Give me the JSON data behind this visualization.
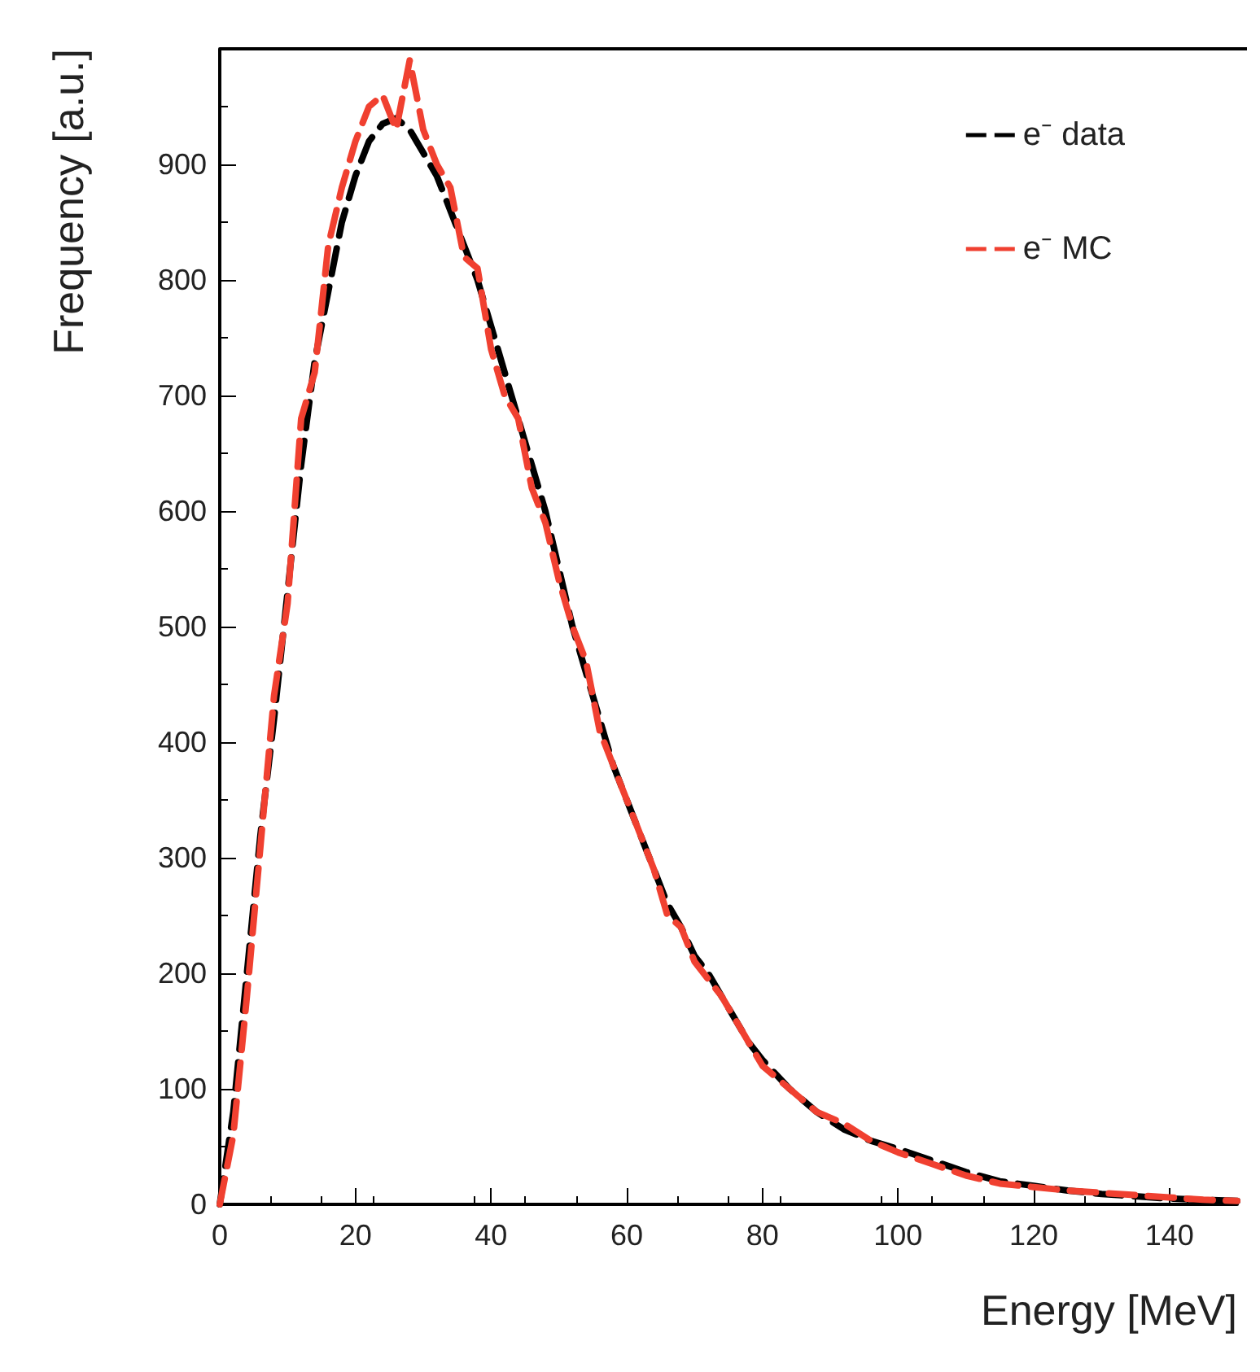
{
  "chart_data": {
    "type": "line",
    "xlabel": "Energy [MeV]",
    "ylabel": "Frequency [a.u.]",
    "x": [
      0,
      2,
      4,
      6,
      8,
      10,
      12,
      14,
      16,
      18,
      20,
      22,
      24,
      26,
      28,
      30,
      32,
      34,
      36,
      38,
      40,
      42,
      44,
      46,
      48,
      50,
      52,
      54,
      56,
      58,
      60,
      62,
      64,
      66,
      68,
      70,
      72,
      74,
      76,
      78,
      80,
      84,
      88,
      92,
      96,
      100,
      105,
      110,
      115,
      120,
      125,
      130,
      135,
      140,
      145,
      150
    ],
    "series": [
      {
        "name": "e⁻ data",
        "color": "#000000",
        "values": [
          0,
          80,
          200,
          320,
          420,
          530,
          640,
          730,
          790,
          850,
          890,
          920,
          935,
          940,
          930,
          910,
          890,
          860,
          830,
          800,
          760,
          720,
          680,
          640,
          600,
          550,
          500,
          460,
          420,
          380,
          350,
          320,
          290,
          260,
          240,
          215,
          200,
          180,
          160,
          140,
          125,
          100,
          80,
          65,
          55,
          48,
          38,
          28,
          20,
          16,
          12,
          9,
          7,
          5,
          4,
          3
        ]
      },
      {
        "name": "e⁻ MC",
        "color": "#f04030",
        "values": [
          0,
          60,
          180,
          310,
          440,
          520,
          680,
          720,
          830,
          880,
          920,
          950,
          960,
          930,
          990,
          930,
          900,
          880,
          820,
          810,
          740,
          700,
          680,
          620,
          590,
          540,
          500,
          470,
          410,
          380,
          350,
          320,
          290,
          250,
          240,
          210,
          195,
          180,
          160,
          140,
          120,
          100,
          80,
          70,
          55,
          45,
          35,
          25,
          18,
          15,
          12,
          10,
          8,
          6,
          4,
          3
        ]
      }
    ],
    "xlim": [
      0,
      150
    ],
    "xticks": [
      0,
      20,
      40,
      60,
      80,
      100,
      120,
      140
    ],
    "ylim": [
      0,
      1000
    ],
    "yticks": [
      0,
      100,
      200,
      300,
      400,
      500,
      600,
      700,
      800,
      900
    ],
    "grid": false,
    "legend": "top right",
    "line_style": "dashed",
    "marker": "none"
  }
}
